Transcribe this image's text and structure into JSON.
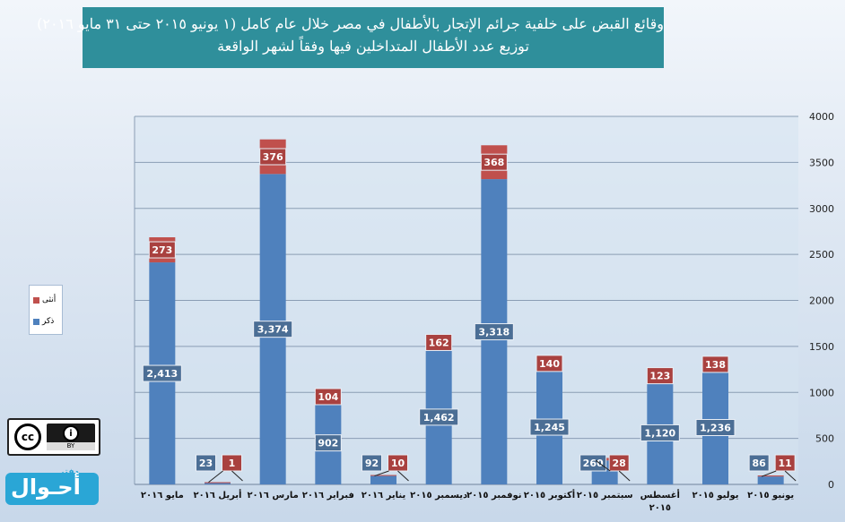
{
  "title_lines": [
    "وقائع القبض على خلفية جرائم الإتجار بالأطفال في مصر خلال عام كامل (١ يونيو ٢٠١٥ حتى ٣١ مايو ٢٠١٦)",
    "توزيع عدد الأطفال المتداخلين فيها وفقاً لشهر الواقعة"
  ],
  "legend": {
    "female_label": "أنثى",
    "male_label": "ذكر"
  },
  "logo_cc": {
    "cc_text": "cc",
    "by_text": "BY"
  },
  "logo_brand": {
    "main": "أحـوال",
    "small": "دفتر"
  },
  "colors": {
    "male": "#4f81bd",
    "female": "#c0504d",
    "label_bg_male": "#4b6e95",
    "label_bg_female": "#a9413f"
  },
  "chart_data": {
    "type": "bar",
    "stacked": true,
    "categories": [
      "مايو ٢٠١٦",
      "أبريل ٢٠١٦",
      "مارس ٢٠١٦",
      "فبراير ٢٠١٦",
      "يناير ٢٠١٦",
      "ديسمبر ٢٠١٥",
      "نوفمبر ٢٠١٥",
      "أكتوبر ٢٠١٥",
      "سبتمبر ٢٠١٥",
      "أغسطس ٢٠١٥",
      "يوليو ٢٠١٥",
      "يونيو ٢٠١٥"
    ],
    "series": [
      {
        "name": "ذكر",
        "values": [
          2413,
          23,
          3374,
          902,
          92,
          1462,
          3318,
          1245,
          260,
          1120,
          1236,
          86
        ],
        "labels": [
          "2,413",
          "23",
          "3,374",
          "902",
          "92",
          "1,462",
          "3,318",
          "1,245",
          "260",
          "1,120",
          "1,236",
          "86"
        ]
      },
      {
        "name": "أنثى",
        "values": [
          273,
          1,
          376,
          104,
          10,
          162,
          368,
          140,
          28,
          123,
          138,
          11
        ],
        "labels": [
          "273",
          "1",
          "376",
          "104",
          "10",
          "162",
          "368",
          "140",
          "28",
          "123",
          "138",
          "11"
        ]
      }
    ],
    "yticks": [
      "0",
      "500",
      "1000",
      "1500",
      "2000",
      "2500",
      "3000",
      "3500",
      "4000"
    ],
    "ylim": [
      0,
      4000
    ],
    "grid": true,
    "y_axis_side": "right",
    "legend_position": "left"
  }
}
